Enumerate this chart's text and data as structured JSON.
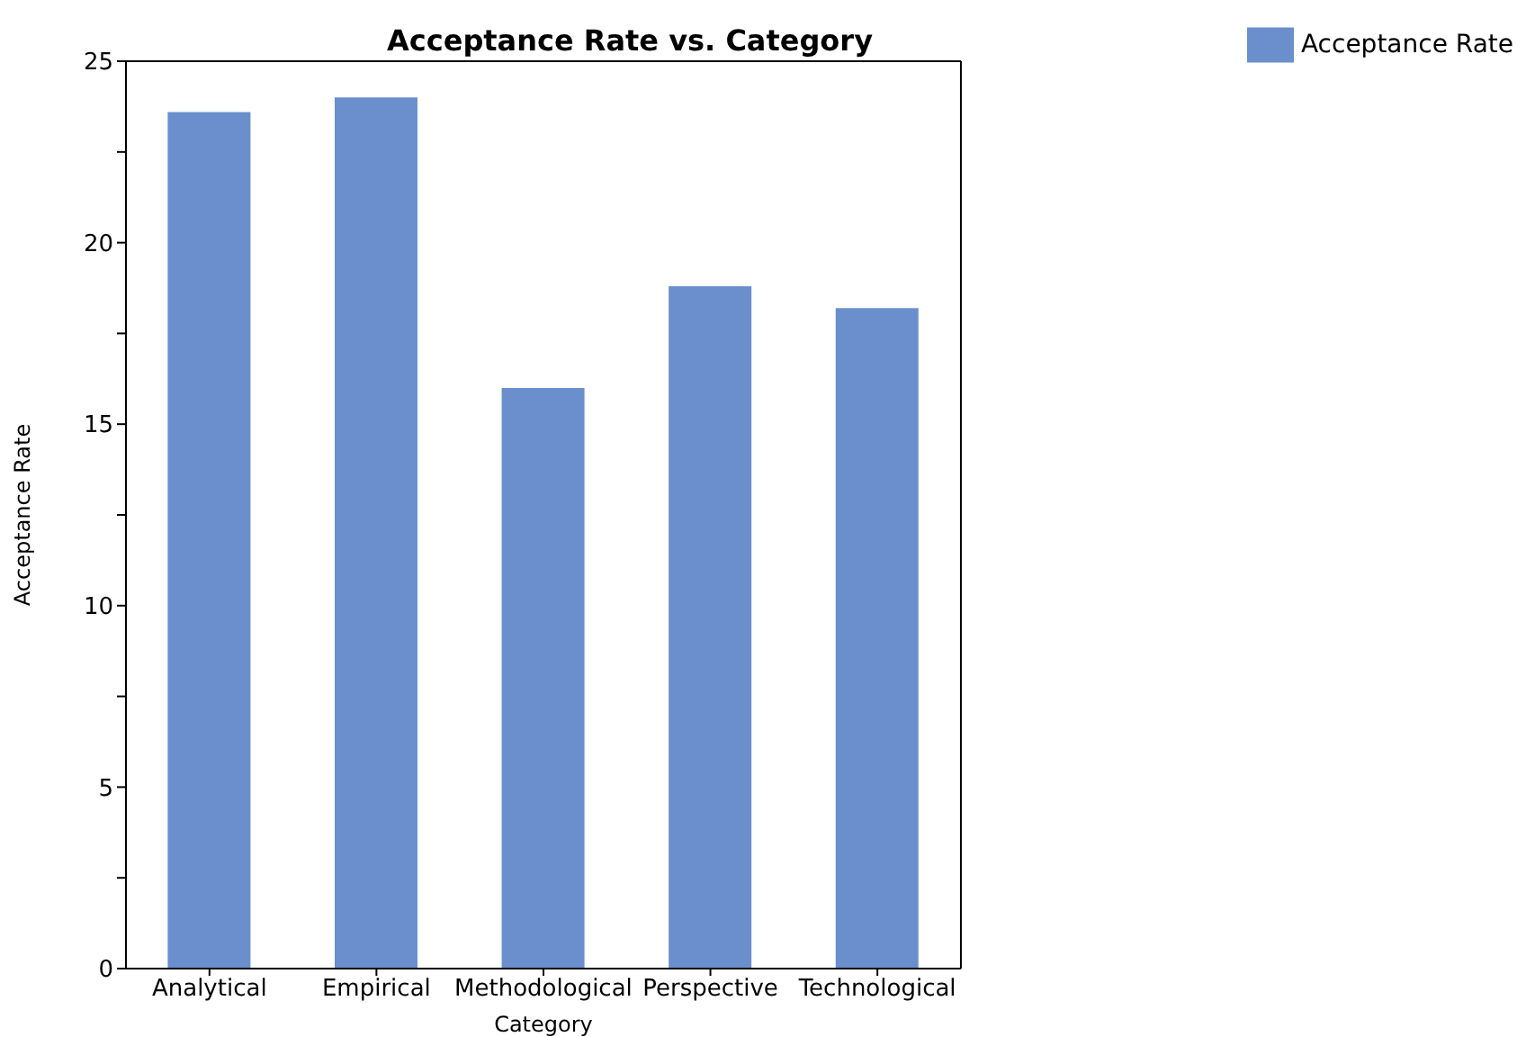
{
  "chart_data": {
    "type": "bar",
    "title": "Acceptance Rate vs. Category",
    "xlabel": "Category",
    "ylabel": "Acceptance Rate",
    "categories": [
      "Analytical",
      "Empirical",
      "Methodological",
      "Perspective",
      "Technological"
    ],
    "series": [
      {
        "name": "Acceptance Rate",
        "color": "#6a8fcc",
        "values": [
          23.6,
          24.0,
          16.0,
          18.8,
          18.2
        ]
      }
    ],
    "ylim": [
      0,
      25
    ],
    "yticks": [
      0,
      {
        "value": 2.5,
        "label": null
      },
      5,
      {
        "value": 7.5,
        "label": null
      },
      10,
      {
        "value": 12.5,
        "label": null
      },
      15,
      {
        "value": 17.5,
        "label": null
      },
      20,
      {
        "value": 22.5,
        "label": null
      },
      25
    ],
    "grid": false,
    "legend": "top right"
  }
}
